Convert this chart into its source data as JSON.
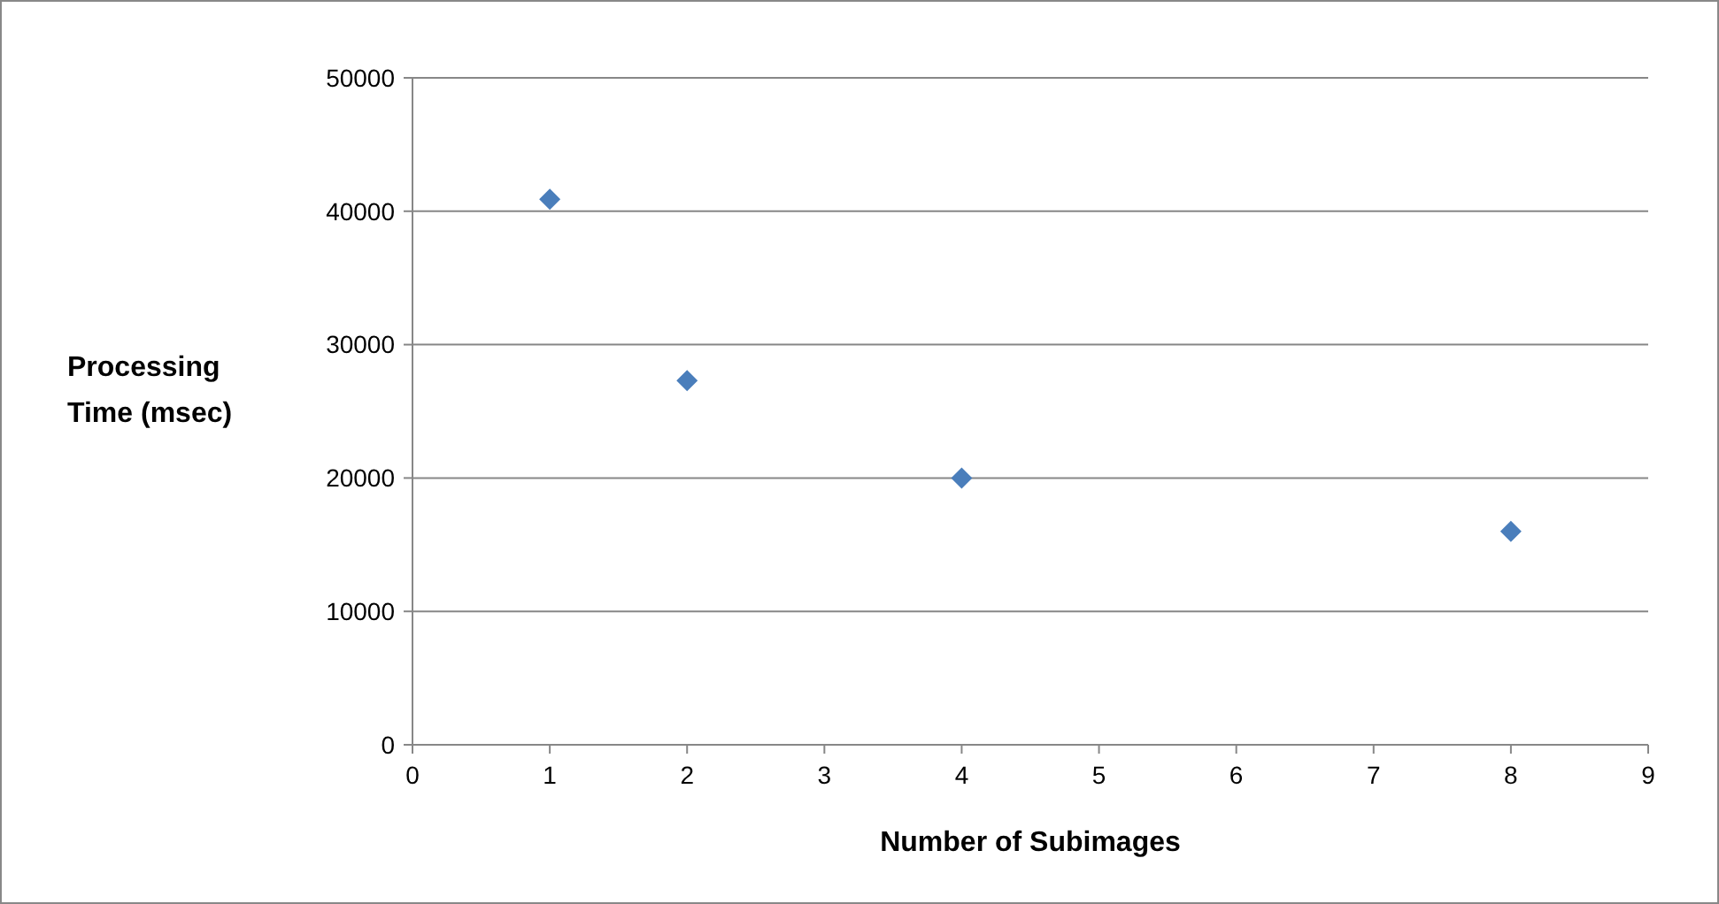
{
  "chart_data": {
    "type": "scatter",
    "xlabel": "Number of Subimages",
    "ylabel": "Processing Time (msec)",
    "x": [
      1,
      2,
      4,
      8
    ],
    "series": [
      {
        "color": "#4a7ebb",
        "values": [
          40900,
          27300,
          20000,
          16000
        ]
      }
    ],
    "xlim": [
      0,
      9
    ],
    "xticks": [
      0,
      1,
      2,
      3,
      4,
      5,
      6,
      7,
      8,
      9
    ],
    "ylim": [
      0,
      50000
    ],
    "yticks": [
      0,
      10000,
      20000,
      30000,
      40000,
      50000
    ],
    "grid": "y",
    "marker": "diamond"
  }
}
